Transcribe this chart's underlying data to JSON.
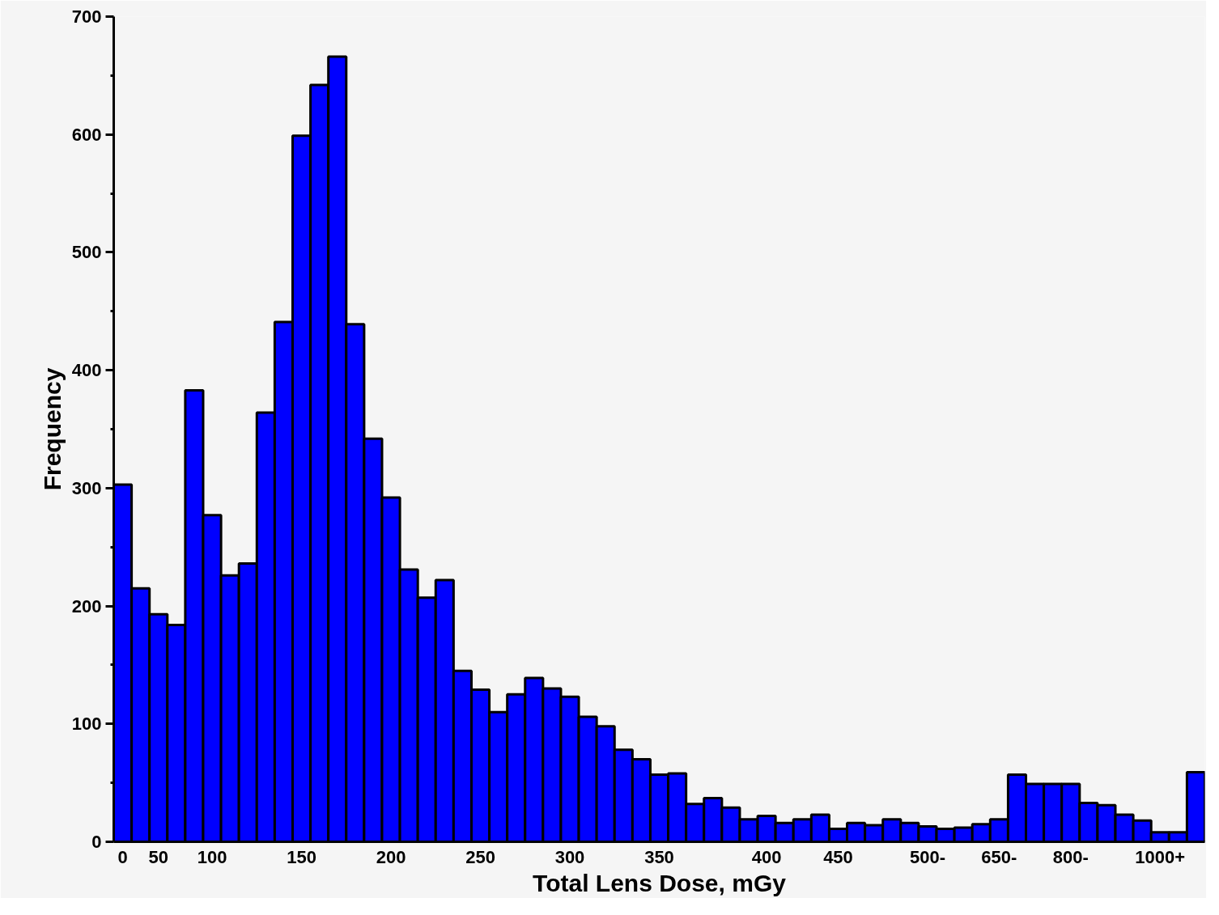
{
  "chart_data": {
    "type": "bar",
    "xlabel": "Total Lens Dose, mGy",
    "ylabel": "Frequency",
    "categories": [
      "0",
      null,
      "50",
      null,
      null,
      "100",
      null,
      null,
      null,
      null,
      "150",
      null,
      null,
      null,
      null,
      "200",
      null,
      null,
      null,
      null,
      "250",
      null,
      null,
      null,
      null,
      "300",
      null,
      null,
      null,
      null,
      "350",
      null,
      null,
      null,
      null,
      null,
      "400",
      null,
      null,
      null,
      "450",
      null,
      null,
      null,
      null,
      "500-",
      null,
      null,
      null,
      "650-",
      null,
      null,
      null,
      "800-",
      null,
      null,
      null,
      null,
      "1000+",
      null,
      null
    ],
    "values": [
      303,
      215,
      193,
      184,
      383,
      277,
      226,
      236,
      364,
      441,
      599,
      642,
      666,
      439,
      342,
      292,
      231,
      207,
      222,
      145,
      129,
      110,
      125,
      139,
      130,
      123,
      106,
      98,
      78,
      70,
      57,
      58,
      32,
      37,
      29,
      19,
      22,
      16,
      19,
      23,
      11,
      16,
      14,
      19,
      16,
      13,
      11,
      12,
      15,
      19,
      57,
      49,
      49,
      49,
      33,
      31,
      23,
      18,
      8,
      8,
      59
    ],
    "color": "#0000ff",
    "ylim": [
      0,
      700
    ],
    "yticks": [
      0,
      100,
      200,
      300,
      400,
      500,
      600,
      700,
      {
        "value": 50,
        "label": null
      },
      {
        "value": 150,
        "label": null
      },
      {
        "value": 250,
        "label": null
      },
      {
        "value": 350,
        "label": null
      },
      {
        "value": 450,
        "label": null
      },
      {
        "value": 550,
        "label": null
      },
      {
        "value": 650,
        "label": null
      }
    ],
    "grid": false
  }
}
